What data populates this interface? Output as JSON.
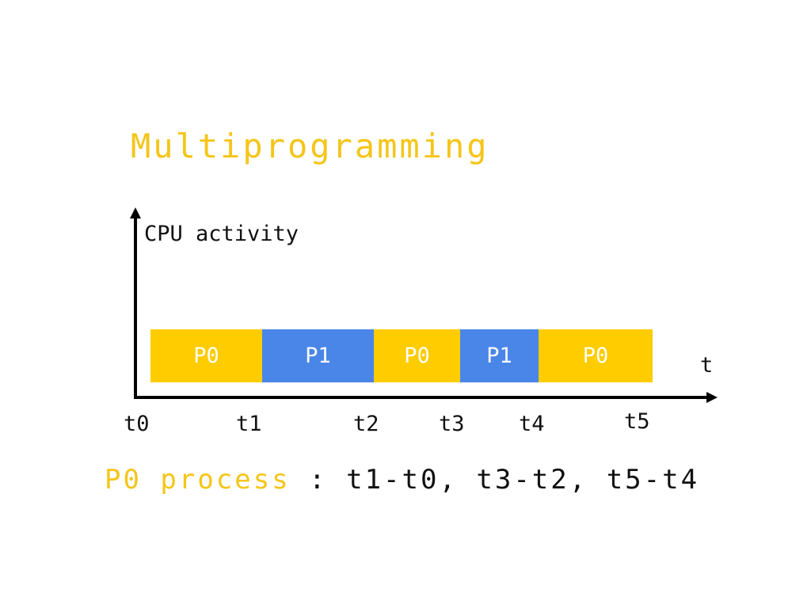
{
  "title": "Multiprogramming",
  "axis": {
    "y_label": "CPU activity",
    "x_label": "t"
  },
  "segments": [
    {
      "label": "P0",
      "start": "t0",
      "end": "t1",
      "color": "#ffcc00"
    },
    {
      "label": "P1",
      "start": "t1",
      "end": "t2",
      "color": "#4a86e8"
    },
    {
      "label": "P0",
      "start": "t2",
      "end": "t3",
      "color": "#ffcc00"
    },
    {
      "label": "P1",
      "start": "t3",
      "end": "t4",
      "color": "#4a86e8"
    },
    {
      "label": "P0",
      "start": "t4",
      "end": "t5",
      "color": "#ffcc00"
    }
  ],
  "ticks": [
    "t0",
    "t1",
    "t2",
    "t3",
    "t4",
    "t5"
  ],
  "caption": {
    "highlight": "P0 process",
    "rest": " : t1-t0, t3-t2, t5-t4"
  },
  "colors": {
    "title": "#f5c518",
    "p0": "#ffcc00",
    "p1": "#4a86e8",
    "text": "#111111"
  }
}
